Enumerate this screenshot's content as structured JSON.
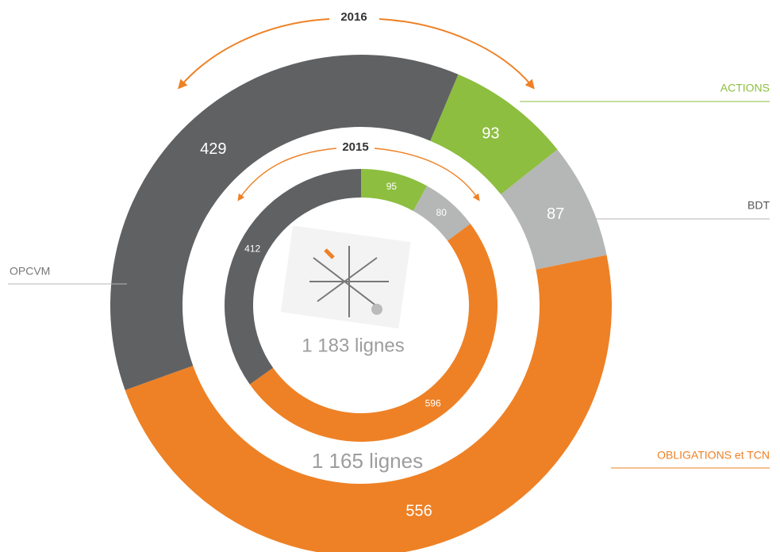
{
  "chart_data": {
    "type": "donut",
    "categories": [
      "ACTIONS",
      "BDT",
      "OBLIGATIONS et TCN",
      "OPCVM"
    ],
    "colors": [
      "#8dbe3f",
      "#b5b6b6",
      "#ee8125",
      "#606163"
    ],
    "rings": [
      {
        "name": "2016",
        "total_label": "1 165 lignes",
        "values": [
          93,
          87,
          556,
          429
        ]
      },
      {
        "name": "2015",
        "total_label": "1 183 lignes",
        "values": [
          95,
          80,
          596,
          412
        ]
      }
    ]
  }
}
